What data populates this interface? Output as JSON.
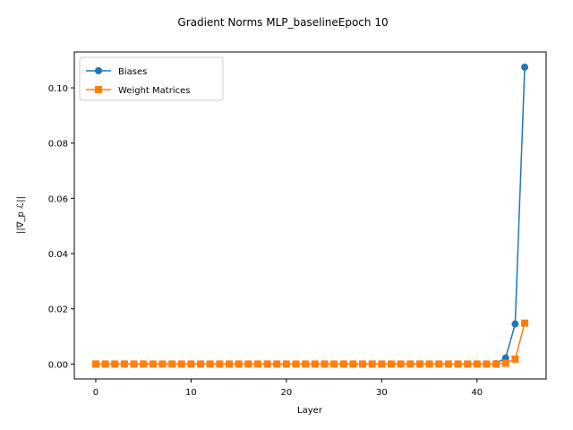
{
  "chart_data": {
    "type": "line",
    "title": "Gradient Norms MLP_baselineEpoch 10",
    "xlabel": "Layer",
    "ylabel": "||∇_p ℒ||",
    "xlim": [
      -2.25,
      47.25
    ],
    "ylim": [
      -0.0054,
      0.113
    ],
    "xticks": [
      0,
      10,
      20,
      30,
      40
    ],
    "yticks": [
      0.0,
      0.02,
      0.04,
      0.06,
      0.08,
      0.1
    ],
    "ytick_labels": [
      "0.00",
      "0.02",
      "0.04",
      "0.06",
      "0.08",
      "0.10"
    ],
    "legend_position": "upper-left",
    "grid": false,
    "series": [
      {
        "name": "Biases",
        "color": "#1f77b4",
        "marker": "circle",
        "x": [
          0,
          1,
          2,
          3,
          4,
          5,
          6,
          7,
          8,
          9,
          10,
          11,
          12,
          13,
          14,
          15,
          16,
          17,
          18,
          19,
          20,
          21,
          22,
          23,
          24,
          25,
          26,
          27,
          28,
          29,
          30,
          31,
          32,
          33,
          34,
          35,
          36,
          37,
          38,
          39,
          40,
          41,
          42,
          43,
          44,
          45
        ],
        "values": [
          0,
          0,
          0,
          0,
          0,
          0,
          0,
          0,
          0,
          0,
          0,
          0,
          0,
          0,
          0,
          0,
          0,
          0,
          0,
          0,
          0,
          0,
          0,
          0,
          0,
          0,
          0,
          0,
          0,
          0,
          0,
          0,
          0,
          0,
          0,
          0,
          0,
          0,
          0,
          0,
          0,
          0,
          0.0001,
          0.0022,
          0.0145,
          0.1075
        ]
      },
      {
        "name": "Weight Matrices",
        "color": "#ff7f0e",
        "marker": "square",
        "x": [
          0,
          1,
          2,
          3,
          4,
          5,
          6,
          7,
          8,
          9,
          10,
          11,
          12,
          13,
          14,
          15,
          16,
          17,
          18,
          19,
          20,
          21,
          22,
          23,
          24,
          25,
          26,
          27,
          28,
          29,
          30,
          31,
          32,
          33,
          34,
          35,
          36,
          37,
          38,
          39,
          40,
          41,
          42,
          43,
          44,
          45
        ],
        "values": [
          0,
          0,
          0,
          0,
          0,
          0,
          0,
          0,
          0,
          0,
          0,
          0,
          0,
          0,
          0,
          0,
          0,
          0,
          0,
          0,
          0,
          0,
          0,
          0,
          0,
          0,
          0,
          0,
          0,
          0,
          0,
          0,
          0,
          0,
          0,
          0,
          0,
          0,
          0,
          0,
          0,
          0,
          0,
          0.0003,
          0.0018,
          0.0148
        ]
      }
    ]
  }
}
